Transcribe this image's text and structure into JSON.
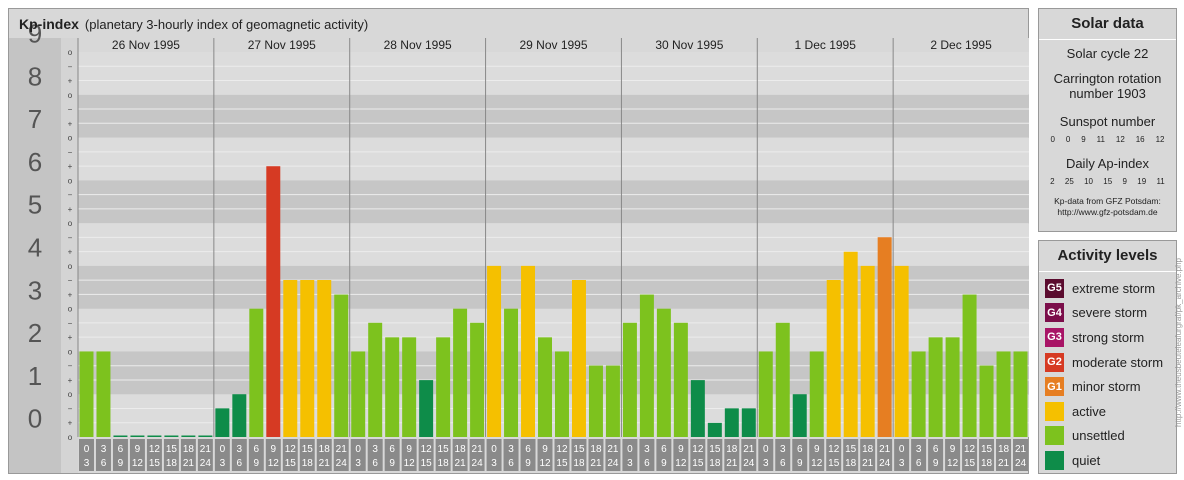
{
  "header": {
    "title": "Kp-index",
    "subtitle": "(planetary 3-hourly index of geomagnetic activity)"
  },
  "side": {
    "solar_title": "Solar data",
    "solar_cycle": "Solar cycle 22",
    "carrington_line1": "Carrington rotation",
    "carrington_line2": "number 1903",
    "sunspot_label": "Sunspot number",
    "sunspot_values": [
      "0",
      "0",
      "9",
      "11",
      "12",
      "16",
      "12"
    ],
    "ap_label": "Daily Ap-index",
    "ap_values": [
      "2",
      "25",
      "10",
      "15",
      "9",
      "19",
      "11"
    ],
    "credit_line1": "Kp-data from GFZ Potsdam:",
    "credit_line2": "http://www.gfz-potsdam.de",
    "activity_title": "Activity levels",
    "levels": [
      {
        "code": "G5",
        "label": "extreme storm",
        "color": "#5a0b2e"
      },
      {
        "code": "G4",
        "label": "severe storm",
        "color": "#7b0e4a"
      },
      {
        "code": "G3",
        "label": "strong storm",
        "color": "#a81466"
      },
      {
        "code": "G2",
        "label": "moderate storm",
        "color": "#d63a23"
      },
      {
        "code": "G1",
        "label": "minor storm",
        "color": "#e67e22"
      },
      {
        "code": "",
        "label": "active",
        "color": "#f5c000"
      },
      {
        "code": "",
        "label": "unsettled",
        "color": "#7dc21e"
      },
      {
        "code": "",
        "label": "quiet",
        "color": "#0e8c49"
      }
    ],
    "url": "http://www.theusbeuteleafurgraf/pk_archive.php"
  },
  "chart_data": {
    "type": "bar",
    "title": "Kp-index",
    "ylim": [
      0,
      9
    ],
    "y_ticks": [
      "0",
      "1",
      "2",
      "3",
      "4",
      "5",
      "6",
      "7",
      "8",
      "9"
    ],
    "sub_ticks": [
      "o",
      "+",
      "−"
    ],
    "days": [
      "26 Nov 1995",
      "27 Nov 1995",
      "28 Nov 1995",
      "29 Nov 1995",
      "30 Nov 1995",
      "1 Dec 1995",
      "2 Dec 1995"
    ],
    "intervals": [
      [
        "0",
        "3"
      ],
      [
        "3",
        "6"
      ],
      [
        "6",
        "9"
      ],
      [
        "9",
        "12"
      ],
      [
        "12",
        "15"
      ],
      [
        "15",
        "18"
      ],
      [
        "18",
        "21"
      ],
      [
        "21",
        "24"
      ]
    ],
    "values": [
      [
        2.0,
        2.0,
        0.0,
        0.0,
        0.0,
        0.0,
        0.0,
        0.0
      ],
      [
        0.67,
        1.0,
        3.0,
        6.33,
        3.67,
        3.67,
        3.67,
        3.33
      ],
      [
        2.0,
        2.67,
        2.33,
        2.33,
        1.33,
        2.33,
        3.0,
        2.67
      ],
      [
        4.0,
        3.0,
        4.0,
        2.33,
        2.0,
        3.67,
        1.67,
        1.67
      ],
      [
        2.67,
        3.33,
        3.0,
        2.67,
        1.33,
        0.33,
        0.67,
        0.67
      ],
      [
        2.0,
        2.67,
        1.0,
        2.0,
        3.67,
        4.33,
        4.0,
        4.67
      ],
      [
        4.0,
        2.0,
        2.33,
        2.33,
        3.33,
        1.67,
        2.0,
        2.0
      ]
    ],
    "colors": {
      "quiet": "#0e8c49",
      "unsettled": "#7dc21e",
      "active": "#f5c000",
      "g1": "#e67e22",
      "g2": "#d63a23"
    }
  }
}
